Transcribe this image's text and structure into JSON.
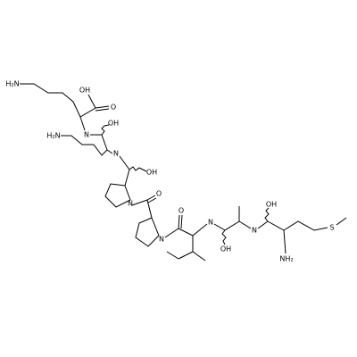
{
  "atoms": [
    {
      "label": "H₂N"
    },
    {
      "label": "OH"
    },
    {
      "label": "O"
    },
    {
      "label": "N"
    },
    {
      "label": "OH"
    },
    {
      "label": "H₂N"
    },
    {
      "label": "N"
    },
    {
      "label": "OH"
    },
    {
      "label": "O"
    },
    {
      "label": "N"
    },
    {
      "label": "O"
    },
    {
      "label": "N"
    },
    {
      "label": "N"
    },
    {
      "label": "OH"
    },
    {
      "label": "N"
    },
    {
      "label": "OH"
    },
    {
      "label": "S"
    },
    {
      "label": "NH₂"
    }
  ]
}
